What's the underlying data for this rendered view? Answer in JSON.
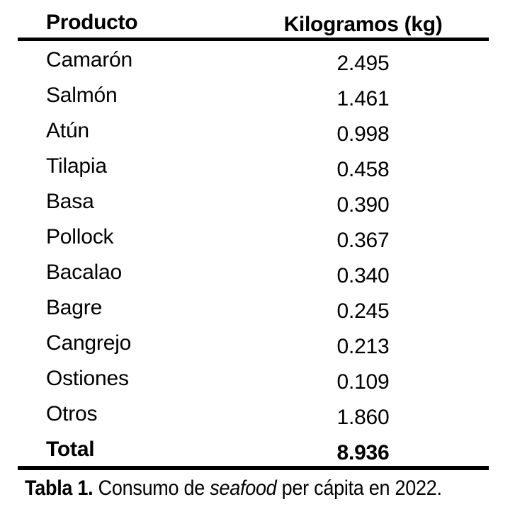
{
  "table": {
    "columns": [
      {
        "label": "Producto"
      },
      {
        "label": "Kilogramos (kg)"
      }
    ],
    "rows": [
      {
        "producto": "Camarón",
        "kg": "2.495",
        "bold": false
      },
      {
        "producto": "Salmón",
        "kg": "1.461",
        "bold": false
      },
      {
        "producto": "Atún",
        "kg": "0.998",
        "bold": false
      },
      {
        "producto": "Tilapia",
        "kg": "0.458",
        "bold": false
      },
      {
        "producto": "Basa",
        "kg": "0.390",
        "bold": false
      },
      {
        "producto": "Pollock",
        "kg": "0.367",
        "bold": false
      },
      {
        "producto": "Bacalao",
        "kg": "0.340",
        "bold": false
      },
      {
        "producto": "Bagre",
        "kg": "0.245",
        "bold": false
      },
      {
        "producto": "Cangrejo",
        "kg": "0.213",
        "bold": false
      },
      {
        "producto": "Ostiones",
        "kg": "0.109",
        "bold": false
      },
      {
        "producto": "Otros",
        "kg": "1.860",
        "bold": false
      },
      {
        "producto": "Total",
        "kg": "8.936",
        "bold": true
      }
    ]
  },
  "caption": {
    "label": "Tabla 1. ",
    "text_before_italic": "Consumo de ",
    "italic": "seafood",
    "text_after_italic": " per cápita en 2022."
  },
  "colors": {
    "text": "#000000",
    "rule": "#000000",
    "background": "#ffffff"
  },
  "chart_data": {
    "type": "table",
    "title": "Tabla 1. Consumo de seafood per cápita en 2022.",
    "columns": [
      "Producto",
      "Kilogramos (kg)"
    ],
    "rows": [
      [
        "Camarón",
        2.495
      ],
      [
        "Salmón",
        1.461
      ],
      [
        "Atún",
        0.998
      ],
      [
        "Tilapia",
        0.458
      ],
      [
        "Basa",
        0.39
      ],
      [
        "Pollock",
        0.367
      ],
      [
        "Bacalao",
        0.34
      ],
      [
        "Bagre",
        0.245
      ],
      [
        "Cangrejo",
        0.213
      ],
      [
        "Ostiones",
        0.109
      ],
      [
        "Otros",
        1.86
      ]
    ],
    "total_row": [
      "Total",
      8.936
    ]
  }
}
